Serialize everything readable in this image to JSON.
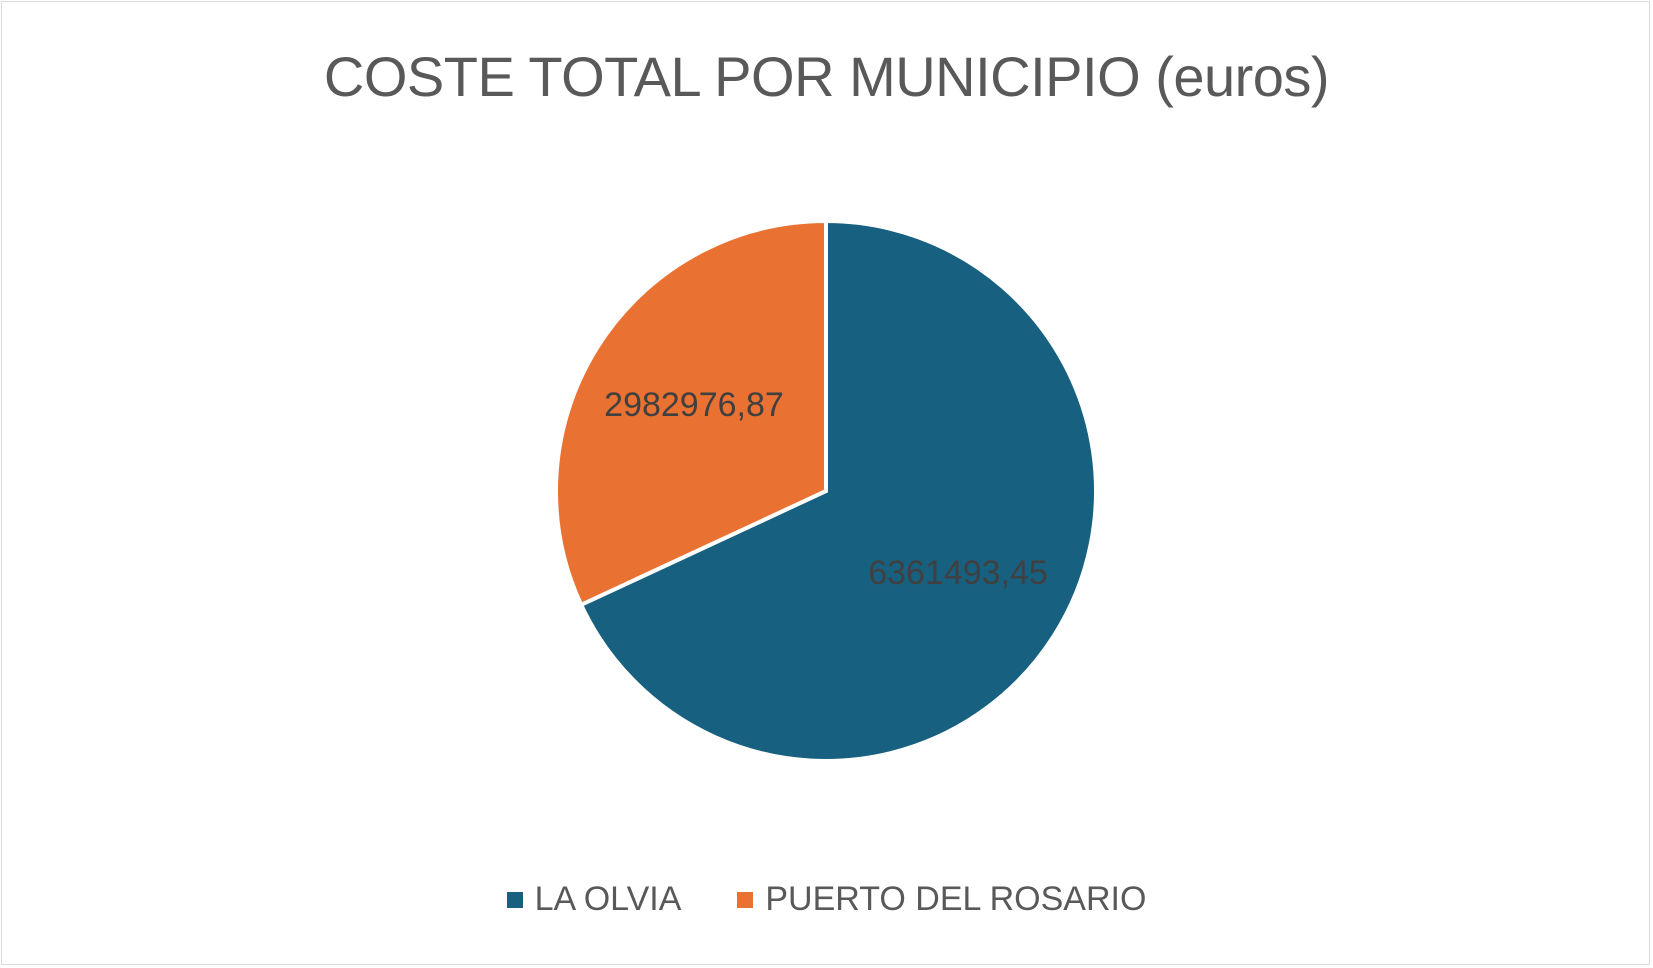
{
  "chart_data": {
    "type": "pie",
    "title": "COSTE TOTAL POR MUNICIPIO (euros)",
    "categories": [
      "LA OLVIA",
      "PUERTO DEL ROSARIO"
    ],
    "values": [
      6361493.45,
      2982976.87
    ],
    "data_labels": [
      "6361493,45",
      "2982976,87"
    ],
    "colors": [
      "#176080",
      "#E97132"
    ],
    "legend_position": "bottom",
    "start_angle": "top, clockwise"
  }
}
